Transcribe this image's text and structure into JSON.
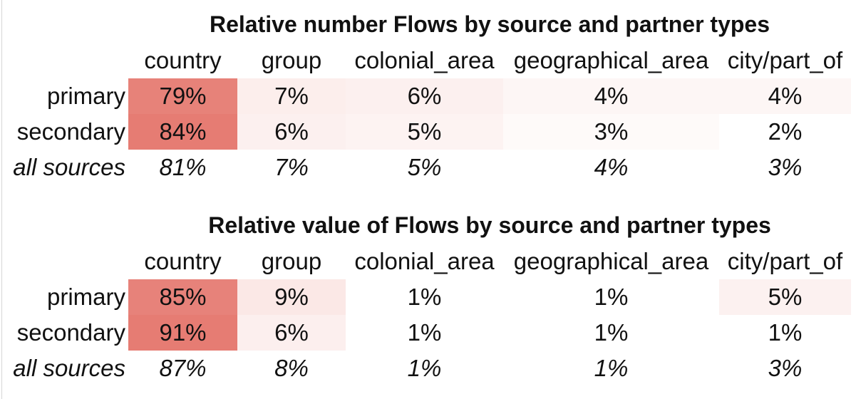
{
  "chart_data": [
    {
      "type": "table",
      "title": "Relative number Flows by source and partner types",
      "columns": [
        "country",
        "group",
        "colonial_area",
        "geographical_area",
        "city/part_of"
      ],
      "rows": [
        {
          "label": "primary",
          "values": [
            "79%",
            "7%",
            "6%",
            "4%",
            "4%"
          ],
          "shares": [
            0.79,
            0.07,
            0.06,
            0.04,
            0.04
          ]
        },
        {
          "label": "secondary",
          "values": [
            "84%",
            "6%",
            "5%",
            "3%",
            "2%"
          ],
          "shares": [
            0.84,
            0.06,
            0.05,
            0.03,
            0.02
          ]
        }
      ],
      "totals": {
        "label": "all sources",
        "values": [
          "81%",
          "7%",
          "5%",
          "4%",
          "3%"
        ]
      }
    },
    {
      "type": "table",
      "title": "Relative value of Flows by source and partner types",
      "columns": [
        "country",
        "group",
        "colonial_area",
        "geographical_area",
        "city/part_of"
      ],
      "rows": [
        {
          "label": "primary",
          "values": [
            "85%",
            "9%",
            "1%",
            "1%",
            "5%"
          ],
          "shares": [
            0.85,
            0.09,
            0.01,
            0.01,
            0.05
          ]
        },
        {
          "label": "secondary",
          "values": [
            "91%",
            "6%",
            "1%",
            "1%",
            "1%"
          ],
          "shares": [
            0.91,
            0.06,
            0.01,
            0.01,
            0.01
          ]
        }
      ],
      "totals": {
        "label": "all sources",
        "values": [
          "87%",
          "8%",
          "1%",
          "1%",
          "3%"
        ]
      }
    }
  ],
  "colors": {
    "heat_max": "#e67c73",
    "heat_min": "#ffffff",
    "text": "#111111"
  }
}
